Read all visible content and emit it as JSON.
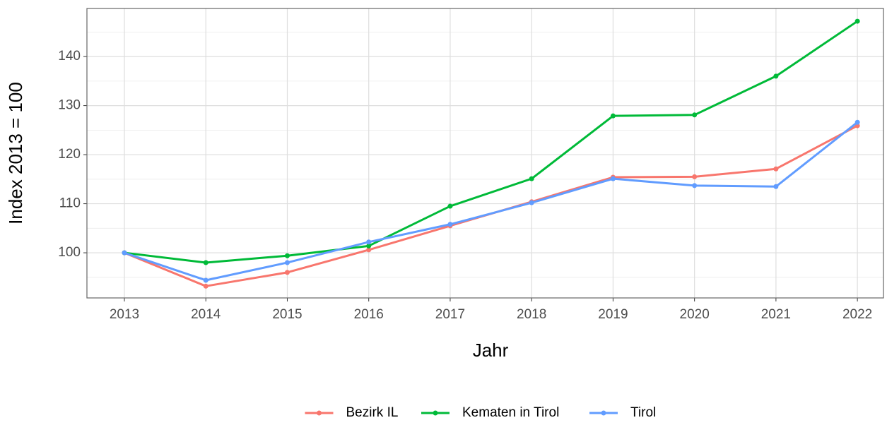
{
  "chart_data": {
    "type": "line",
    "x_label": "Jahr",
    "y_label": "Index  2013  = 100",
    "x": [
      2013,
      2014,
      2015,
      2016,
      2017,
      2018,
      2019,
      2020,
      2021,
      2022
    ],
    "series": [
      {
        "name": "Bezirk IL",
        "color": "#F8766D",
        "values": [
          100,
          93.2,
          96.0,
          100.6,
          105.5,
          110.4,
          115.4,
          115.5,
          117.1,
          125.9
        ]
      },
      {
        "name": "Kematen in Tirol",
        "color": "#00BA38",
        "values": [
          100,
          98.0,
          99.4,
          101.4,
          109.5,
          115.1,
          127.9,
          128.1,
          136.0,
          147.2
        ]
      },
      {
        "name": "Tirol",
        "color": "#619CFF",
        "values": [
          100,
          94.4,
          98.0,
          102.2,
          105.8,
          110.2,
          115.1,
          113.7,
          113.5,
          126.6
        ]
      }
    ],
    "xlim": [
      2012.54,
      2022.32
    ],
    "xticks": [
      2013,
      2014,
      2015,
      2016,
      2017,
      2018,
      2019,
      2020,
      2021,
      2022
    ],
    "ylim": [
      90.8,
      149.8
    ],
    "yticks": [
      100,
      110,
      120,
      130,
      140
    ],
    "yminor": [
      95,
      105,
      115,
      125,
      135,
      145
    ],
    "grid": true,
    "legend": "bottom"
  }
}
